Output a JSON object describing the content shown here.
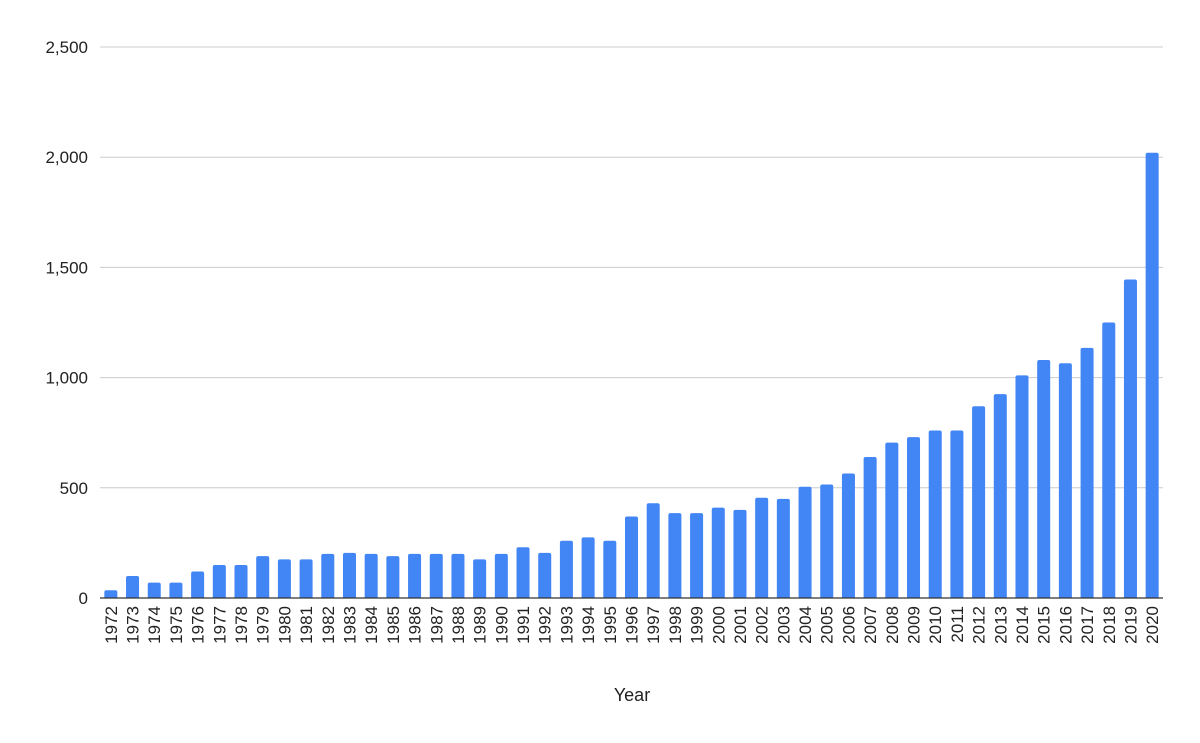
{
  "chart_data": {
    "type": "bar",
    "title": "",
    "xlabel": "Year",
    "ylabel": "",
    "ylim": [
      0,
      2500
    ],
    "yticks": [
      0,
      500,
      1000,
      1500,
      2000,
      2500
    ],
    "ytick_labels": [
      "0",
      "500",
      "1,000",
      "1,500",
      "2,000",
      "2,500"
    ],
    "grid": true,
    "legend": "none",
    "bar_color": "#4285f4",
    "categories": [
      "1972",
      "1973",
      "1974",
      "1975",
      "1976",
      "1977",
      "1978",
      "1979",
      "1980",
      "1981",
      "1982",
      "1983",
      "1984",
      "1985",
      "1986",
      "1987",
      "1988",
      "1989",
      "1990",
      "1991",
      "1992",
      "1993",
      "1994",
      "1995",
      "1996",
      "1997",
      "1998",
      "1999",
      "2000",
      "2001",
      "2002",
      "2003",
      "2004",
      "2005",
      "2006",
      "2007",
      "2008",
      "2009",
      "2010",
      "2011",
      "2012",
      "2013",
      "2014",
      "2015",
      "2016",
      "2017",
      "2018",
      "2019",
      "2020"
    ],
    "values": [
      35,
      100,
      70,
      70,
      120,
      150,
      150,
      190,
      175,
      175,
      200,
      205,
      200,
      190,
      200,
      200,
      200,
      175,
      200,
      230,
      205,
      260,
      275,
      260,
      370,
      430,
      385,
      385,
      410,
      400,
      455,
      450,
      505,
      515,
      565,
      640,
      705,
      730,
      760,
      760,
      870,
      925,
      1010,
      1080,
      1065,
      1135,
      1250,
      1445,
      2020
    ]
  }
}
